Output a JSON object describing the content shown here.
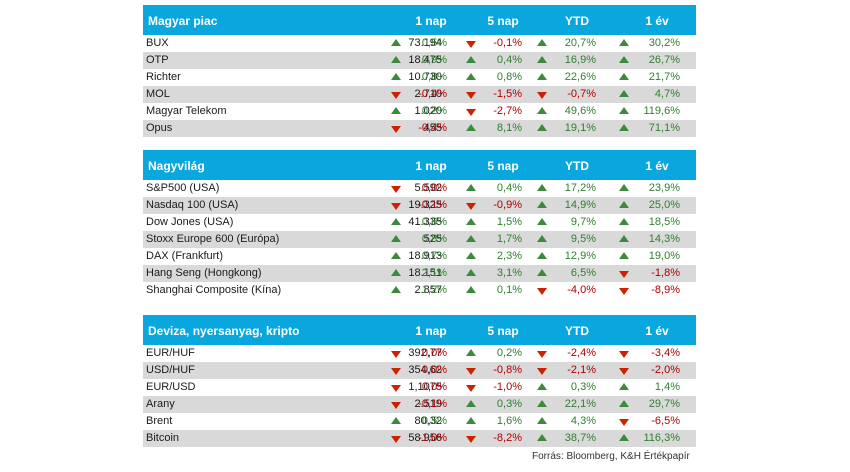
{
  "columns": [
    "1 nap",
    "5 nap",
    "YTD",
    "1 év"
  ],
  "colors": {
    "header_bg": "#0aa7de",
    "up": "#3c8b3c",
    "down": "#cc2200",
    "alt_row": "#d9d9d9"
  },
  "sections": [
    {
      "title": "Magyar piac",
      "rows": [
        {
          "name": "BUX",
          "value": "73.194",
          "changes": [
            {
              "v": "0,5%",
              "dir": "up"
            },
            {
              "v": "-0,1%",
              "dir": "down"
            },
            {
              "v": "20,7%",
              "dir": "up"
            },
            {
              "v": "30,2%",
              "dir": "up"
            }
          ]
        },
        {
          "name": "OTP",
          "value": "18.475",
          "changes": [
            {
              "v": "0,9%",
              "dir": "up"
            },
            {
              "v": "0,4%",
              "dir": "up"
            },
            {
              "v": "16,9%",
              "dir": "up"
            },
            {
              "v": "26,7%",
              "dir": "up"
            }
          ]
        },
        {
          "name": "Richter",
          "value": "10.730",
          "changes": [
            {
              "v": "0,8%",
              "dir": "up"
            },
            {
              "v": "0,8%",
              "dir": "up"
            },
            {
              "v": "22,6%",
              "dir": "up"
            },
            {
              "v": "21,7%",
              "dir": "up"
            }
          ]
        },
        {
          "name": "MOL",
          "value": "2.710",
          "changes": [
            {
              "v": "-0,4%",
              "dir": "down"
            },
            {
              "v": "-1,5%",
              "dir": "down"
            },
            {
              "v": "-0,7%",
              "dir": "down"
            },
            {
              "v": "4,7%",
              "dir": "up"
            }
          ]
        },
        {
          "name": "Magyar Telekom",
          "value": "1.020",
          "changes": [
            {
              "v": "0,2%",
              "dir": "up"
            },
            {
              "v": "-2,7%",
              "dir": "down"
            },
            {
              "v": "49,6%",
              "dir": "up"
            },
            {
              "v": "119,6%",
              "dir": "up"
            }
          ]
        },
        {
          "name": "Opus",
          "value": "455",
          "changes": [
            {
              "v": "-0,4%",
              "dir": "down"
            },
            {
              "v": "8,1%",
              "dir": "up"
            },
            {
              "v": "19,1%",
              "dir": "up"
            },
            {
              "v": "71,1%",
              "dir": "up"
            }
          ]
        }
      ]
    },
    {
      "title": "Nagyvilág",
      "rows": [
        {
          "name": "S&P500 (USA)",
          "value": "5.592",
          "changes": [
            {
              "v": "0,0%",
              "dir": "down"
            },
            {
              "v": "0,4%",
              "dir": "up"
            },
            {
              "v": "17,2%",
              "dir": "up"
            },
            {
              "v": "23,9%",
              "dir": "up"
            }
          ]
        },
        {
          "name": "Nasdaq 100 (USA)",
          "value": "19.325",
          "changes": [
            {
              "v": "-0,1%",
              "dir": "down"
            },
            {
              "v": "-0,9%",
              "dir": "down"
            },
            {
              "v": "14,9%",
              "dir": "up"
            },
            {
              "v": "25,0%",
              "dir": "up"
            }
          ]
        },
        {
          "name": "Dow Jones (USA)",
          "value": "41.335",
          "changes": [
            {
              "v": "0,6%",
              "dir": "up"
            },
            {
              "v": "1,5%",
              "dir": "up"
            },
            {
              "v": "9,7%",
              "dir": "up"
            },
            {
              "v": "18,5%",
              "dir": "up"
            }
          ]
        },
        {
          "name": "Stoxx Europe 600 (Európa)",
          "value": "525",
          "changes": [
            {
              "v": "0,8%",
              "dir": "up"
            },
            {
              "v": "1,7%",
              "dir": "up"
            },
            {
              "v": "9,5%",
              "dir": "up"
            },
            {
              "v": "14,3%",
              "dir": "up"
            }
          ]
        },
        {
          "name": "DAX (Frankfurt)",
          "value": "18.913",
          "changes": [
            {
              "v": "0,7%",
              "dir": "up"
            },
            {
              "v": "2,3%",
              "dir": "up"
            },
            {
              "v": "12,9%",
              "dir": "up"
            },
            {
              "v": "19,0%",
              "dir": "up"
            }
          ]
        },
        {
          "name": "Hang Seng (Hongkong)",
          "value": "18.151",
          "changes": [
            {
              "v": "2,1%",
              "dir": "up"
            },
            {
              "v": "3,1%",
              "dir": "up"
            },
            {
              "v": "6,5%",
              "dir": "up"
            },
            {
              "v": "-1,8%",
              "dir": "down"
            }
          ]
        },
        {
          "name": "Shanghai Composite (Kína)",
          "value": "2.857",
          "changes": [
            {
              "v": "1,2%",
              "dir": "up"
            },
            {
              "v": "0,1%",
              "dir": "up"
            },
            {
              "v": "-4,0%",
              "dir": "down"
            },
            {
              "v": "-8,9%",
              "dir": "down"
            }
          ]
        }
      ]
    },
    {
      "title": "Deviza, nyersanyag, kripto",
      "rows": [
        {
          "name": "EUR/HUF",
          "value": "392,77",
          "changes": [
            {
              "v": "0,0%",
              "dir": "down"
            },
            {
              "v": "0,2%",
              "dir": "up"
            },
            {
              "v": "-2,4%",
              "dir": "down"
            },
            {
              "v": "-3,4%",
              "dir": "down"
            }
          ]
        },
        {
          "name": "USD/HUF",
          "value": "354,62",
          "changes": [
            {
              "v": "0,0%",
              "dir": "down"
            },
            {
              "v": "-0,8%",
              "dir": "down"
            },
            {
              "v": "-2,1%",
              "dir": "down"
            },
            {
              "v": "-2,0%",
              "dir": "down"
            }
          ]
        },
        {
          "name": "EUR/USD",
          "value": "1,1075",
          "changes": [
            {
              "v": "0,0%",
              "dir": "down"
            },
            {
              "v": "-1,0%",
              "dir": "down"
            },
            {
              "v": "0,3%",
              "dir": "up"
            },
            {
              "v": "1,4%",
              "dir": "up"
            }
          ]
        },
        {
          "name": "Arany",
          "value": "2.519",
          "changes": [
            {
              "v": "-0,1%",
              "dir": "down"
            },
            {
              "v": "0,3%",
              "dir": "up"
            },
            {
              "v": "22,1%",
              "dir": "up"
            },
            {
              "v": "29,7%",
              "dir": "up"
            }
          ]
        },
        {
          "name": "Brent",
          "value": "80,32",
          "changes": [
            {
              "v": "0,5%",
              "dir": "up"
            },
            {
              "v": "1,6%",
              "dir": "up"
            },
            {
              "v": "4,3%",
              "dir": "up"
            },
            {
              "v": "-6,5%",
              "dir": "down"
            }
          ]
        },
        {
          "name": "Bitcoin",
          "value": "58.956",
          "changes": [
            {
              "v": "-1,0%",
              "dir": "down"
            },
            {
              "v": "-8,2%",
              "dir": "down"
            },
            {
              "v": "38,7%",
              "dir": "up"
            },
            {
              "v": "116,3%",
              "dir": "up"
            }
          ]
        }
      ]
    }
  ],
  "source": "Forrás: Bloomberg, K&H Értékpapír"
}
